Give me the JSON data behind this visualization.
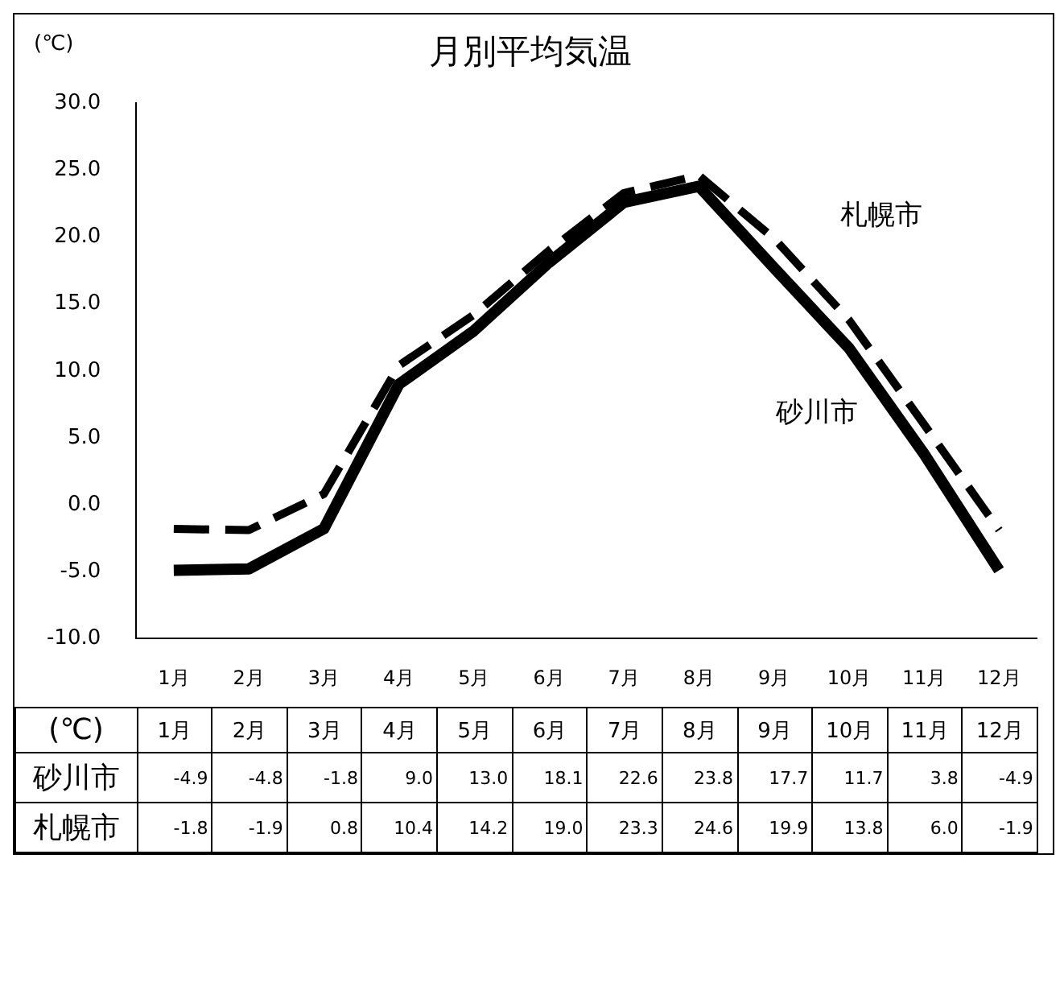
{
  "chart_data": {
    "type": "line",
    "title": "月別平均気温",
    "ylabel": "(℃)",
    "categories": [
      "1月",
      "2月",
      "3月",
      "4月",
      "5月",
      "6月",
      "7月",
      "8月",
      "9月",
      "10月",
      "11月",
      "12月"
    ],
    "series": [
      {
        "name": "砂川市",
        "color": "#000000",
        "line_style": "solid",
        "values": [
          -4.9,
          -4.8,
          -1.8,
          9.0,
          13.0,
          18.1,
          22.6,
          23.8,
          17.7,
          11.7,
          3.8,
          -4.9
        ],
        "value_labels": [
          "-4.9",
          "-4.8",
          "-1.8",
          "9.0",
          "13.0",
          "18.1",
          "22.6",
          "23.8",
          "17.7",
          "11.7",
          "3.8",
          "-4.9"
        ]
      },
      {
        "name": "札幌市",
        "color": "#000000",
        "line_style": "dashed",
        "values": [
          -1.8,
          -1.9,
          0.8,
          10.4,
          14.2,
          19.0,
          23.3,
          24.6,
          19.9,
          13.8,
          6.0,
          -1.9
        ],
        "value_labels": [
          "-1.8",
          "-1.9",
          "0.8",
          "10.4",
          "14.2",
          "19.0",
          "23.3",
          "24.6",
          "19.9",
          "13.8",
          "6.0",
          "-1.9"
        ]
      }
    ],
    "ylim": [
      -10,
      30
    ],
    "yticks": [
      {
        "value": -10,
        "label": "-10.0"
      },
      {
        "value": -5,
        "label": "-5.0"
      },
      {
        "value": 0,
        "label": "0.0"
      },
      {
        "value": 5,
        "label": "5.0"
      },
      {
        "value": 10,
        "label": "10.0"
      },
      {
        "value": 15,
        "label": "15.0"
      },
      {
        "value": 20,
        "label": "20.0"
      },
      {
        "value": 25,
        "label": "25.0"
      },
      {
        "value": 30,
        "label": "30.0"
      }
    ],
    "grid": false,
    "legend": "bottom",
    "marker": "none"
  }
}
